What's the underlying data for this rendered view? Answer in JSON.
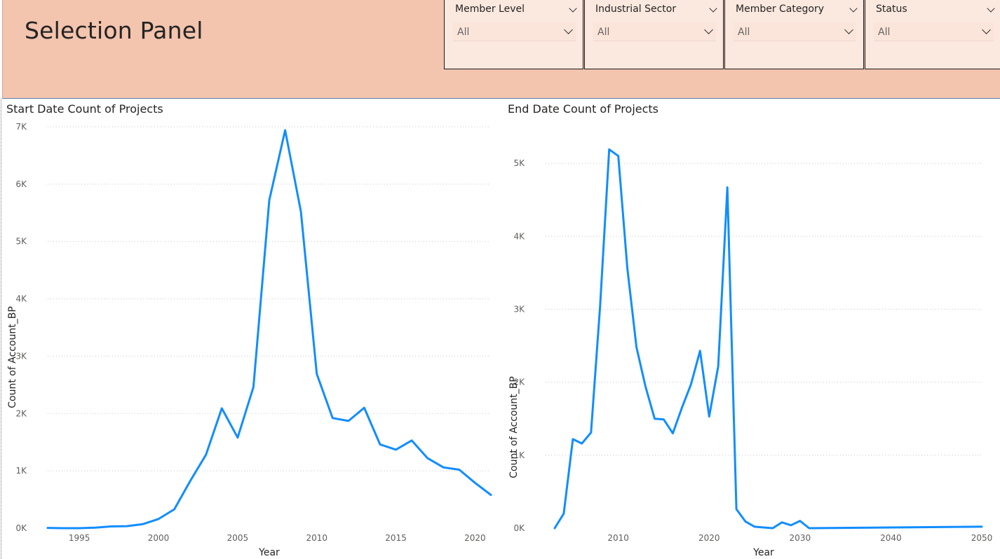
{
  "header": {
    "title": "Selection Panel",
    "bg_color": "#f3c4ae"
  },
  "slicers": [
    {
      "label": "Member Level",
      "value": "All"
    },
    {
      "label": "Industrial Sector",
      "value": "All"
    },
    {
      "label": "Member Category",
      "value": "All"
    },
    {
      "label": "Status",
      "value": "All"
    }
  ],
  "chart_data": [
    {
      "type": "line",
      "title": "Start Date Count of Projects",
      "xlabel": "Year",
      "ylabel": "Count of Account_BP",
      "color": "#118dff",
      "xlim": [
        1993,
        2021
      ],
      "ylim": [
        0,
        7000
      ],
      "xticks": [
        1995,
        2000,
        2005,
        2010,
        2015,
        2020
      ],
      "yticks": [
        0,
        1000,
        2000,
        3000,
        4000,
        5000,
        6000,
        7000
      ],
      "ytick_labels": [
        "0K",
        "1K",
        "2K",
        "3K",
        "4K",
        "5K",
        "6K",
        "7K"
      ],
      "grid": true,
      "x": [
        1993,
        1994,
        1995,
        1996,
        1997,
        1998,
        1999,
        2000,
        2001,
        2002,
        2003,
        2004,
        2005,
        2006,
        2007,
        2008,
        2009,
        2010,
        2011,
        2012,
        2013,
        2014,
        2015,
        2016,
        2017,
        2018,
        2019,
        2020,
        2021
      ],
      "y": [
        5,
        0,
        0,
        10,
        30,
        35,
        70,
        160,
        330,
        820,
        1280,
        2090,
        1580,
        2460,
        5720,
        6940,
        5520,
        2690,
        1920,
        1870,
        2100,
        1460,
        1370,
        1530,
        1220,
        1060,
        1020,
        790,
        580
      ]
    },
    {
      "type": "line",
      "title": "End Date Count of Projects",
      "xlabel": "Year",
      "ylabel": "Count of Account_BP",
      "color": "#118dff",
      "xlim": [
        2002,
        2050
      ],
      "ylim": [
        0,
        5500
      ],
      "xticks": [
        2010,
        2020,
        2030,
        2040,
        2050
      ],
      "yticks": [
        0,
        1000,
        2000,
        3000,
        4000,
        5000
      ],
      "ytick_labels": [
        "0K",
        "1K",
        "2K",
        "3K",
        "4K",
        "5K"
      ],
      "grid": true,
      "x": [
        2003,
        2004,
        2005,
        2006,
        2007,
        2008,
        2009,
        2010,
        2011,
        2012,
        2013,
        2014,
        2015,
        2016,
        2017,
        2018,
        2019,
        2020,
        2021,
        2022,
        2023,
        2024,
        2025,
        2026,
        2027,
        2028,
        2029,
        2030,
        2031,
        2050
      ],
      "y": [
        0,
        200,
        1220,
        1160,
        1310,
        3050,
        5190,
        5100,
        3560,
        2480,
        1940,
        1500,
        1490,
        1300,
        1650,
        1970,
        2430,
        1530,
        2220,
        4670,
        260,
        90,
        20,
        10,
        0,
        80,
        40,
        100,
        0,
        20
      ]
    }
  ]
}
